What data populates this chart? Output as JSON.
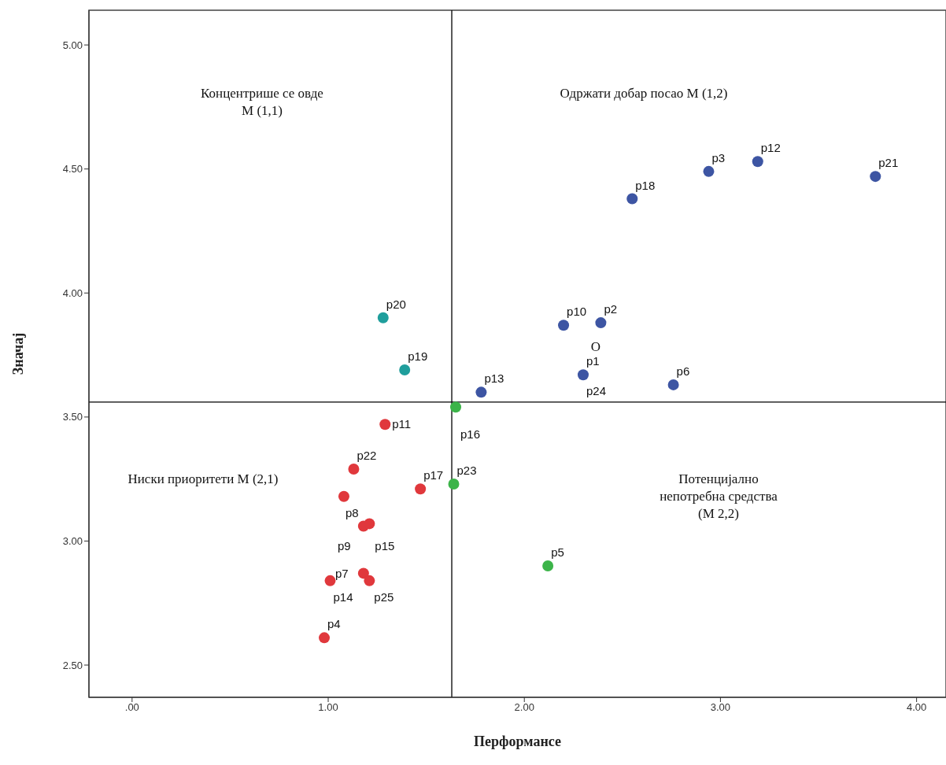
{
  "chart_data": {
    "type": "scatter",
    "xlabel": "Перформансе",
    "ylabel": "Значај",
    "xlim": [
      -0.22,
      4.15
    ],
    "ylim": [
      2.37,
      5.14
    ],
    "xticks": [
      {
        "value": 0,
        "label": ".00"
      },
      {
        "value": 1,
        "label": "1.00"
      },
      {
        "value": 2,
        "label": "2.00"
      },
      {
        "value": 3,
        "label": "3.00"
      },
      {
        "value": 4,
        "label": "4.00"
      }
    ],
    "yticks": [
      {
        "value": 2.5,
        "label": "2.50"
      },
      {
        "value": 3,
        "label": "3.00"
      },
      {
        "value": 3.5,
        "label": "3.50"
      },
      {
        "value": 4,
        "label": "4.00"
      },
      {
        "value": 4.5,
        "label": "4.50"
      },
      {
        "value": 5,
        "label": "5.00"
      }
    ],
    "marker": "circle",
    "series": [
      {
        "color": "#3d55a3",
        "x": [
          1.78,
          2.55,
          2.94,
          3.19,
          3.79,
          2.2,
          2.39,
          2.3,
          2.76
        ],
        "values": [
          3.6,
          4.38,
          4.49,
          4.53,
          4.47,
          3.87,
          3.88,
          3.67,
          3.63
        ]
      },
      {
        "color": "#1f9e9c",
        "x": [
          1.28,
          1.39
        ],
        "values": [
          3.9,
          3.69
        ]
      },
      {
        "color": "#3cb449",
        "x": [
          1.65,
          1.64,
          2.12
        ],
        "values": [
          3.54,
          3.23,
          2.9
        ]
      },
      {
        "color": "#e0383c",
        "x": [
          1.29,
          1.13,
          1.08,
          1.47,
          1.18,
          1.21,
          1.18,
          1.01,
          1.21,
          0.98
        ],
        "values": [
          3.47,
          3.29,
          3.18,
          3.21,
          3.06,
          3.07,
          2.87,
          2.84,
          2.84,
          2.61
        ]
      }
    ],
    "ref_lines": [
      {
        "axis": "x",
        "value": 1.63,
        "color": "#000000"
      },
      {
        "axis": "y",
        "value": 3.56,
        "color": "#000000"
      }
    ],
    "annotations": [
      "Концентрише се овде М (1,1)",
      "Одржати добар посао М (1,2)",
      "Ниски приоритети М (2,1)",
      "Потенцијално непотребна средства (М 2,2)",
      "O",
      {
        "text": "p20",
        "x": 1.28,
        "y": 3.9
      },
      {
        "text": "p19",
        "x": 1.39,
        "y": 3.69
      },
      {
        "text": "p13",
        "x": 1.78,
        "y": 3.6
      },
      {
        "text": "p16",
        "x": 1.65,
        "y": 3.54
      },
      {
        "text": "p11",
        "x": 1.29,
        "y": 3.47
      },
      {
        "text": "p22",
        "x": 1.13,
        "y": 3.29
      },
      {
        "text": "p17",
        "x": 1.47,
        "y": 3.21
      },
      {
        "text": "p23",
        "x": 1.64,
        "y": 3.23
      },
      {
        "text": "p8",
        "x": 1.08,
        "y": 3.18
      },
      {
        "text": "p9",
        "x": 1.18,
        "y": 3.06
      },
      {
        "text": "p15",
        "x": 1.21,
        "y": 3.07
      },
      {
        "text": "p7",
        "x": 1.18,
        "y": 2.87
      },
      {
        "text": "p14",
        "x": 1.01,
        "y": 2.84
      },
      {
        "text": "p25",
        "x": 1.21,
        "y": 2.84
      },
      {
        "text": "p4",
        "x": 0.98,
        "y": 2.61
      },
      {
        "text": "p5",
        "x": 2.12,
        "y": 2.9
      },
      {
        "text": "p18",
        "x": 2.55,
        "y": 4.38
      },
      {
        "text": "p3",
        "x": 2.94,
        "y": 4.49
      },
      {
        "text": "p12",
        "x": 3.19,
        "y": 4.53
      },
      {
        "text": "p21",
        "x": 3.79,
        "y": 4.47
      },
      {
        "text": "p10",
        "x": 2.2,
        "y": 3.87
      },
      {
        "text": "p2",
        "x": 2.39,
        "y": 3.88
      },
      {
        "text": "p1",
        "x": 2.3,
        "y": 3.67
      },
      {
        "text": "p24",
        "x": 2.3,
        "y": 3.67
      },
      {
        "text": "p6",
        "x": 2.76,
        "y": 3.63
      }
    ]
  }
}
